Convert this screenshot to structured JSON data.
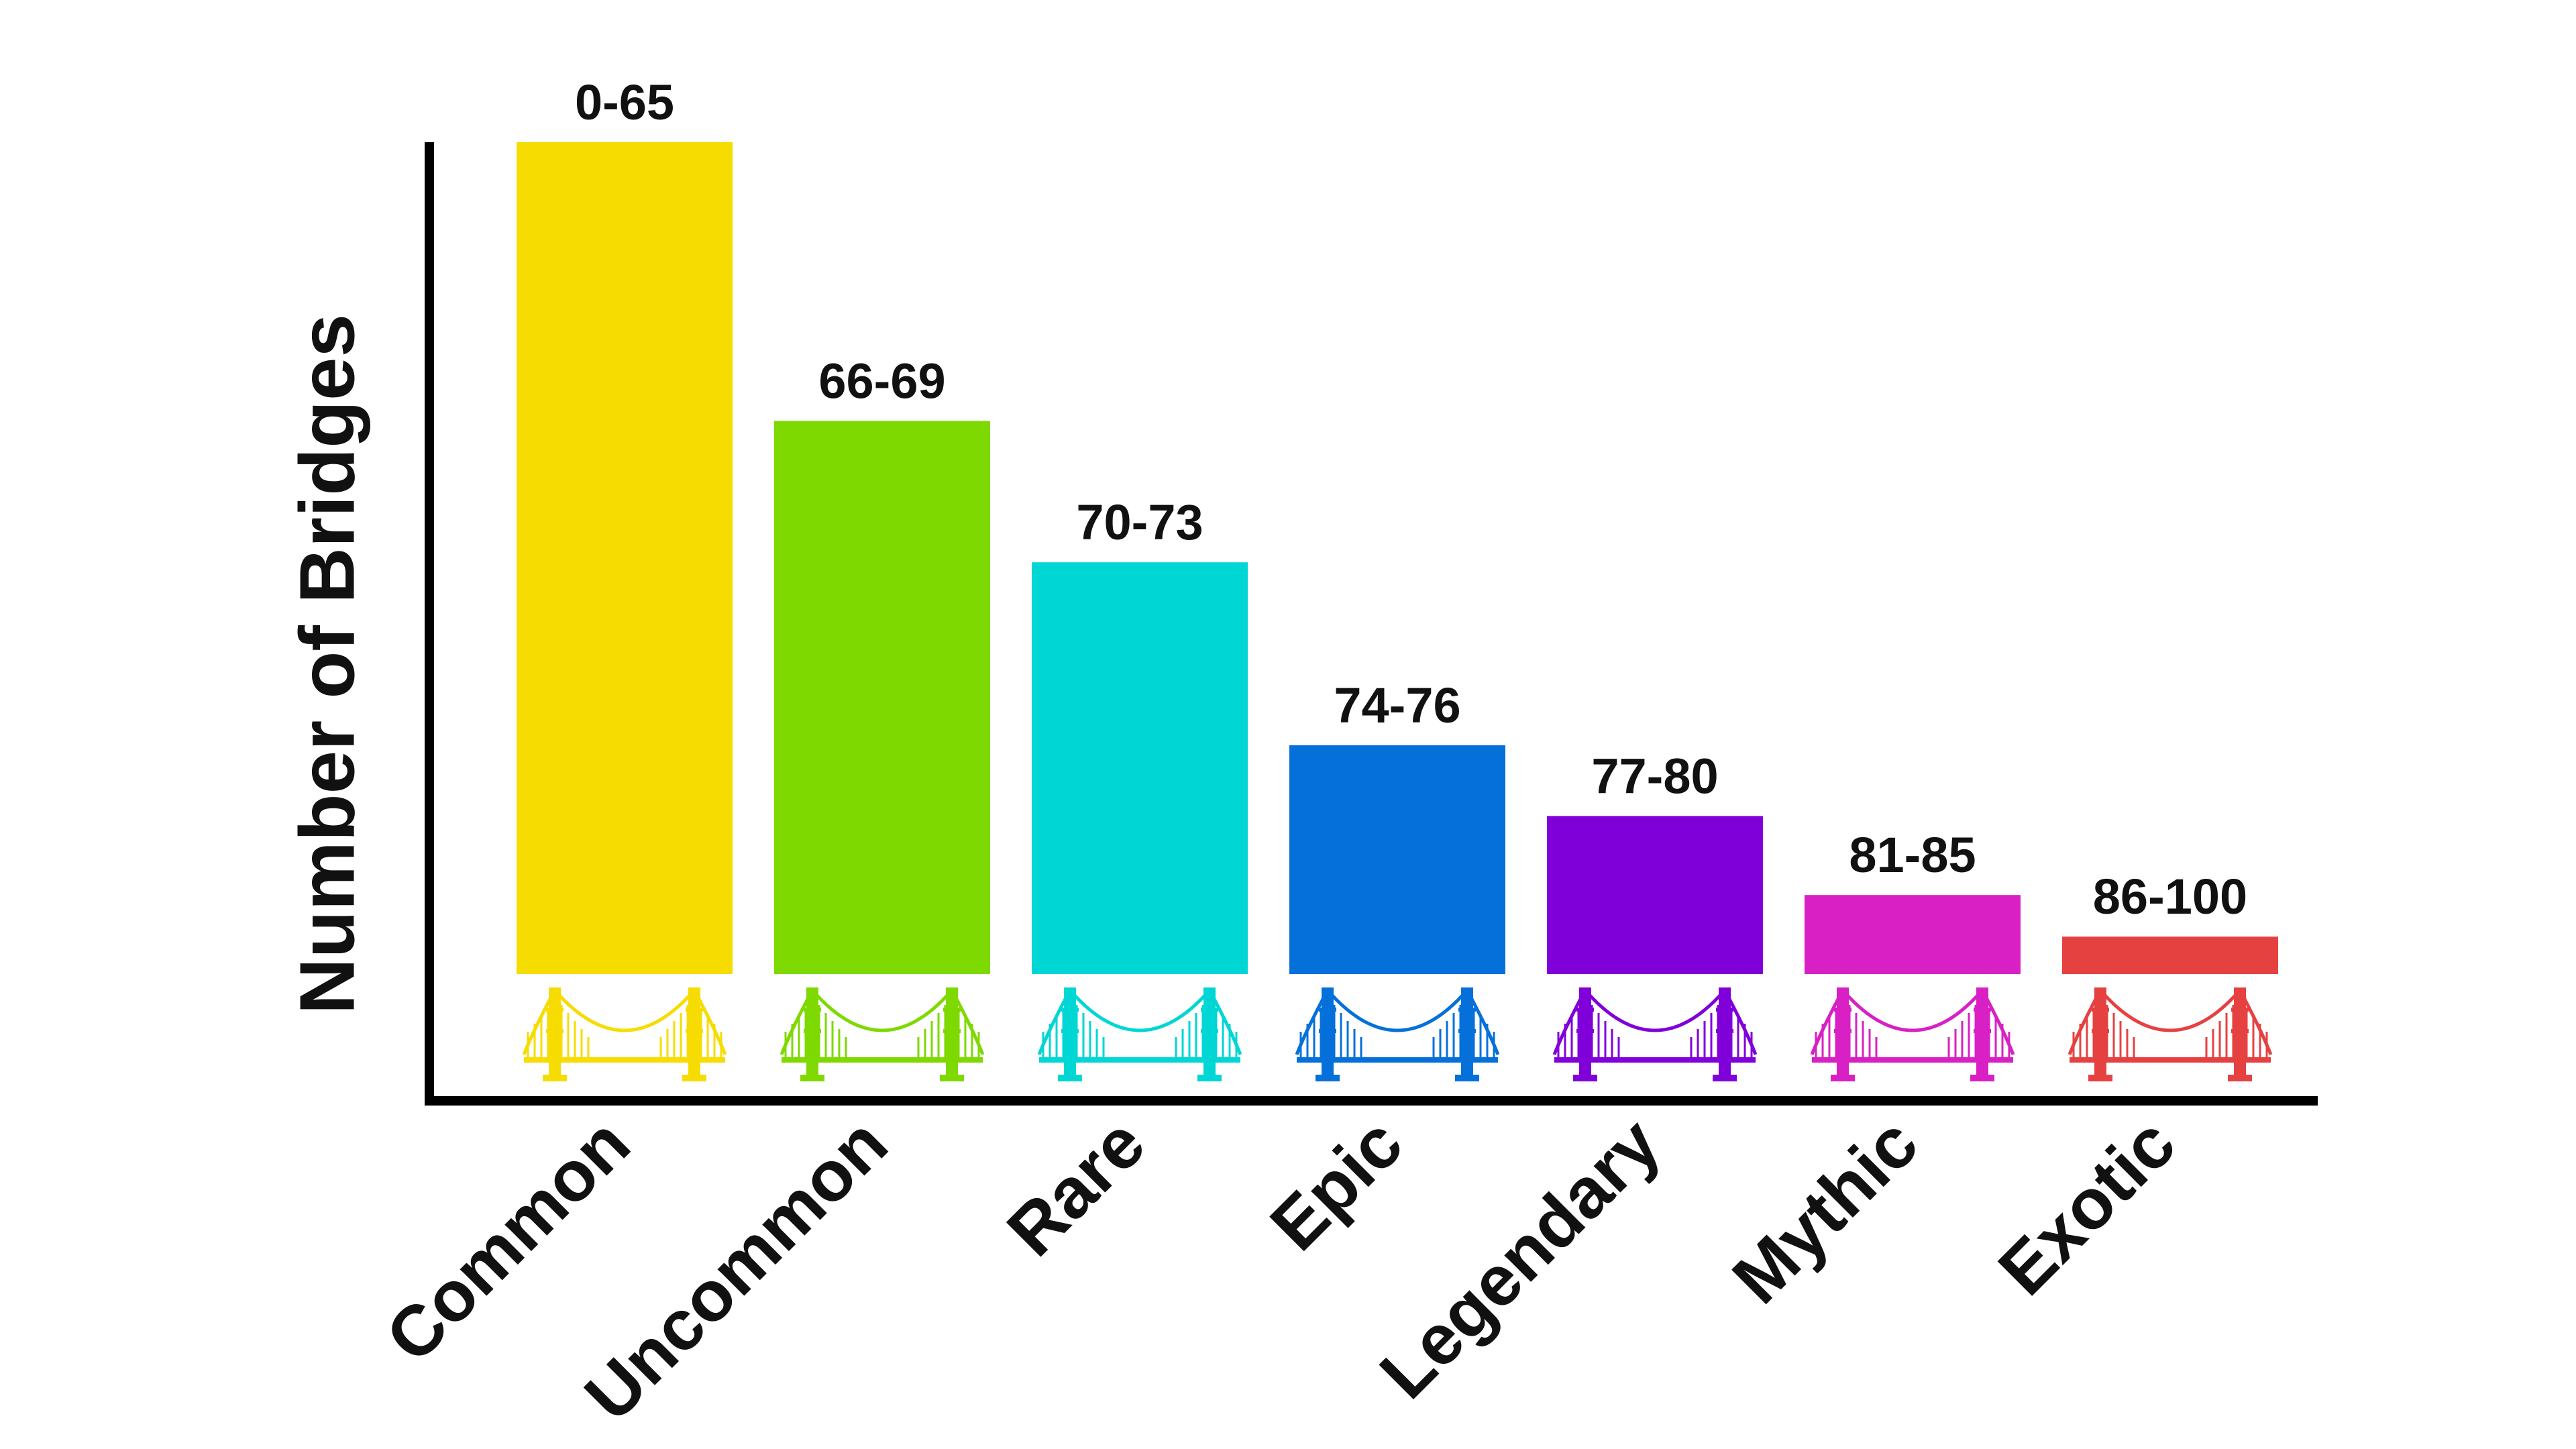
{
  "chart_data": {
    "type": "bar",
    "title": "",
    "xlabel": "",
    "ylabel": "Number of Bridges",
    "grid": false,
    "y_ticks_shown": false,
    "categories": [
      "Common",
      "Uncommon",
      "Rare",
      "Epic",
      "Legendary",
      "Mythic",
      "Exotic"
    ],
    "values": [
      100,
      66.5,
      49.5,
      27.5,
      19,
      9.5,
      4.5
    ],
    "ylim": [
      0,
      100
    ],
    "value_unit": "relative height (y-axis unlabeled)",
    "data_labels": [
      "0-65",
      "66-69",
      "70-73",
      "74-76",
      "77-80",
      "81-85",
      "86-100"
    ],
    "colors": [
      "#F6DC00",
      "#7ED900",
      "#00D6D4",
      "#0570DA",
      "#8000DA",
      "#D820C4",
      "#E64141"
    ],
    "category_icon": "bridge-icon"
  }
}
